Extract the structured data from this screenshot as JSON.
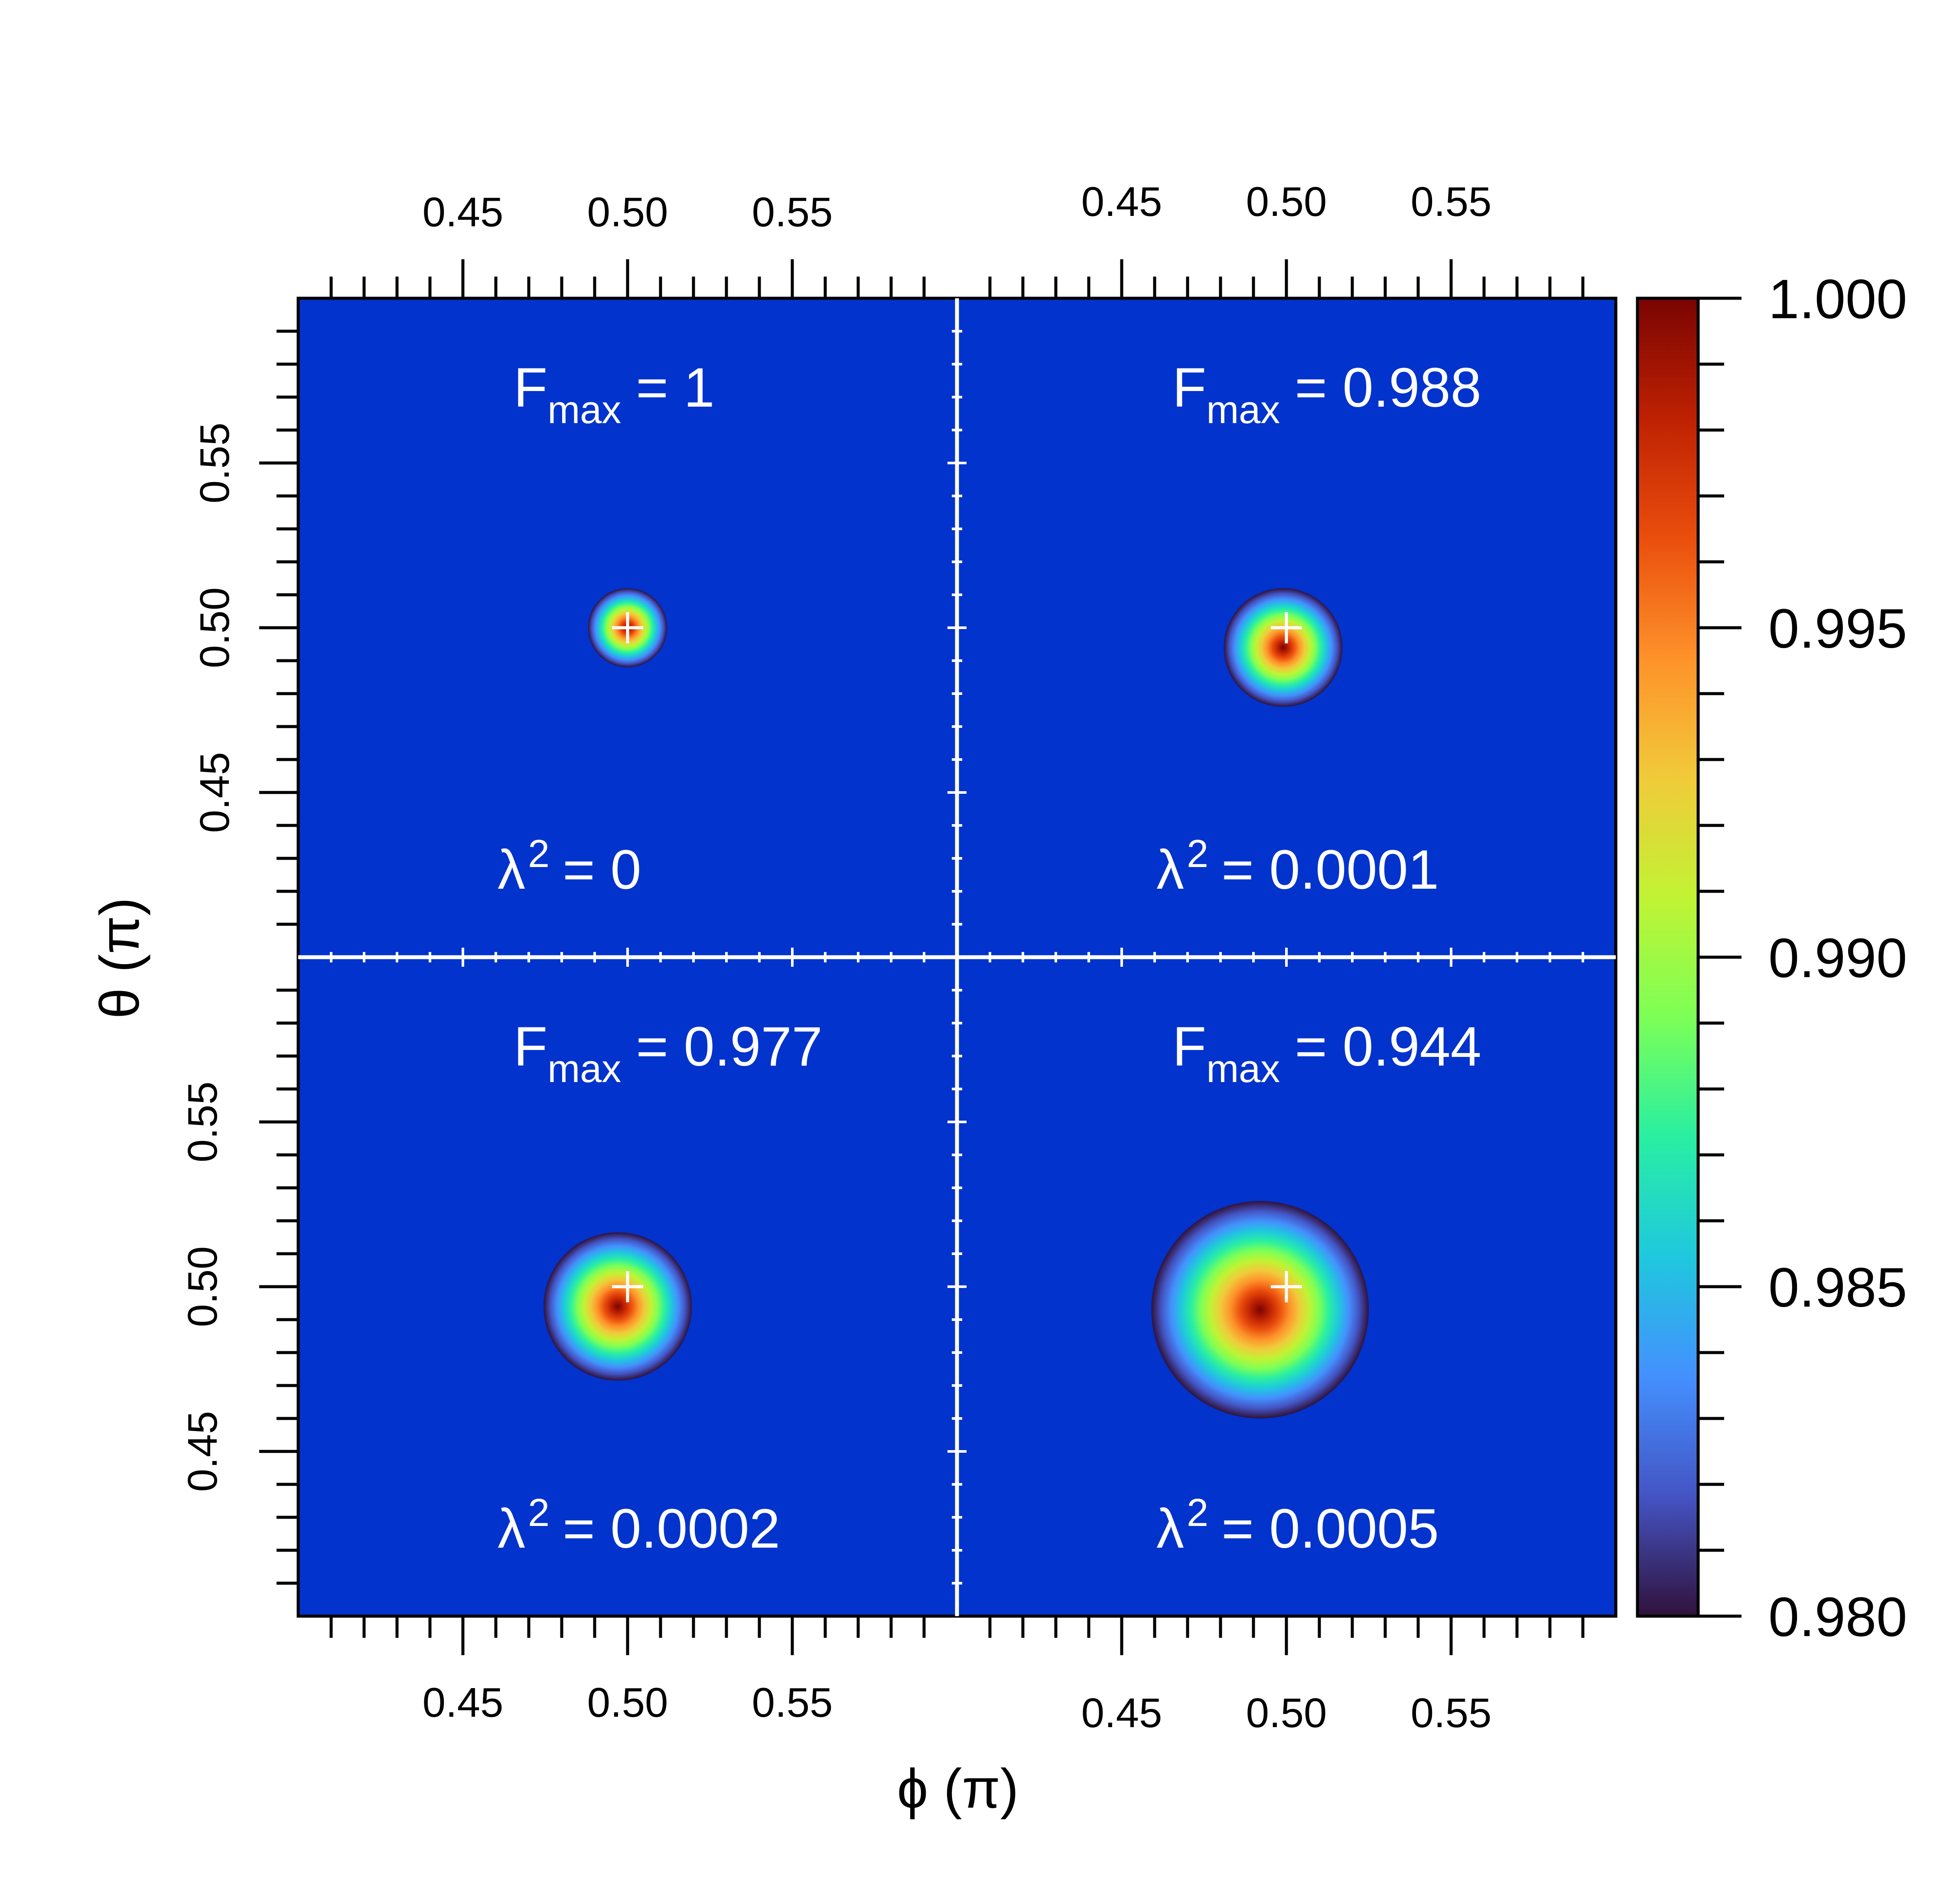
{
  "chart_data": {
    "type": "heatmap",
    "xlabel": "ϕ (π)",
    "ylabel": "θ (π)",
    "x_ticks": [
      "0.45",
      "0.50",
      "0.55"
    ],
    "y_ticks": [
      "0.45",
      "0.50",
      "0.55"
    ],
    "x_tick_values": [
      0.45,
      0.5,
      0.55
    ],
    "y_tick_values": [
      0.45,
      0.5,
      0.55
    ],
    "xlim": [
      0.4,
      0.6
    ],
    "ylim": [
      0.4,
      0.6
    ],
    "colorbar": {
      "min": 0.98,
      "max": 1.0,
      "tick_values": [
        0.98,
        0.985,
        0.99,
        0.995,
        1.0
      ],
      "tick_labels": [
        "0.980",
        "0.985",
        "0.990",
        "0.995",
        "1.000"
      ]
    },
    "colormap": [
      "#30123b",
      "#4454c4",
      "#4490fe",
      "#1fc8de",
      "#29efa2",
      "#7dff56",
      "#c1f334",
      "#f1ca3a",
      "#fe922a",
      "#ea4e0d",
      "#be2102",
      "#7a0403"
    ],
    "background_color": "#0233cc",
    "marker": "+",
    "panels": [
      {
        "fmax_prefix": "F",
        "fmax_sub": "max",
        "fmax_value": "= 1",
        "lambda_prefix": "λ",
        "lambda_sup": "2",
        "lambda_value": "= 0",
        "target": [
          0.5,
          0.5
        ],
        "peak_center": [
          0.5,
          0.5
        ],
        "radius": 0.012,
        "peak_fraction": 0.05
      },
      {
        "fmax_prefix": "F",
        "fmax_sub": "max",
        "fmax_value": "= 0.988",
        "lambda_prefix": "λ",
        "lambda_sup": "2",
        "lambda_value": "= 0.0001",
        "target": [
          0.5,
          0.5
        ],
        "peak_center": [
          0.499,
          0.494
        ],
        "radius": 0.018,
        "peak_fraction": 0.28
      },
      {
        "fmax_prefix": "F",
        "fmax_sub": "max",
        "fmax_value": "= 0.977",
        "lambda_prefix": "λ",
        "lambda_sup": "2",
        "lambda_value": "= 0.0002",
        "target": [
          0.5,
          0.5
        ],
        "peak_center": [
          0.497,
          0.494
        ],
        "radius": 0.0225,
        "peak_fraction": 0.2
      },
      {
        "fmax_prefix": "F",
        "fmax_sub": "max",
        "fmax_value": "= 0.944",
        "lambda_prefix": "λ",
        "lambda_sup": "2",
        "lambda_value": "= 0.0005",
        "target": [
          0.5,
          0.5
        ],
        "peak_center": [
          0.492,
          0.493
        ],
        "radius": 0.033,
        "peak_fraction": 0.45
      }
    ]
  }
}
